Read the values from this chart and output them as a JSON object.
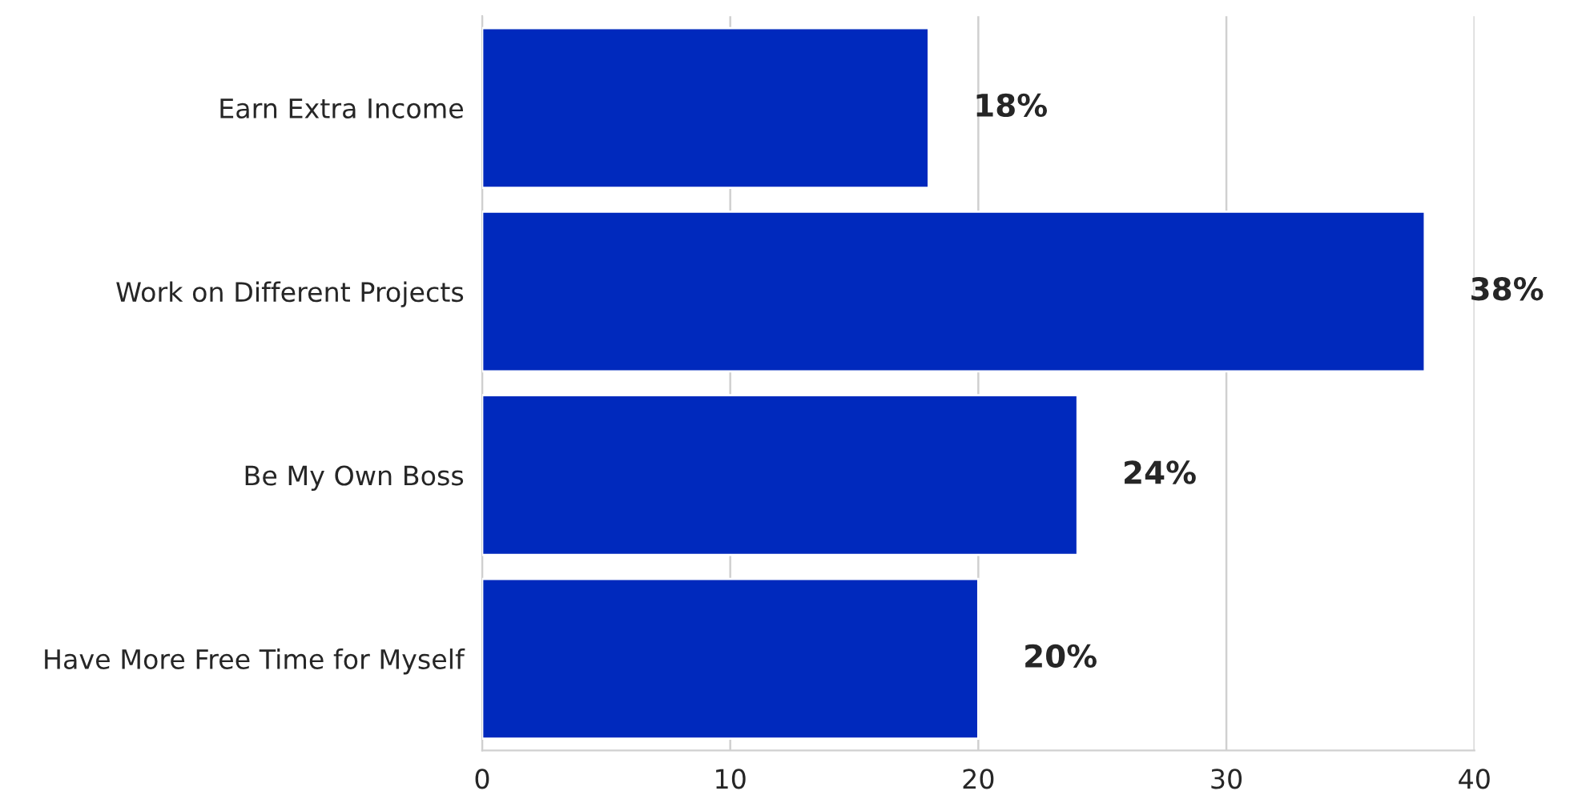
{
  "chart_data": {
    "type": "bar",
    "orientation": "horizontal",
    "categories": [
      "Earn Extra Income",
      "Work on Different Projects",
      "Be My Own Boss",
      "Have More Free Time for Myself"
    ],
    "values": [
      18,
      38,
      24,
      20
    ],
    "color": "#0029bd",
    "value_labels": [
      "18%",
      "38%",
      "24%",
      "20%"
    ],
    "xlim": [
      0,
      40
    ],
    "xticks": [
      0,
      10,
      20,
      30,
      40
    ],
    "grid": "x",
    "legend": false
  }
}
